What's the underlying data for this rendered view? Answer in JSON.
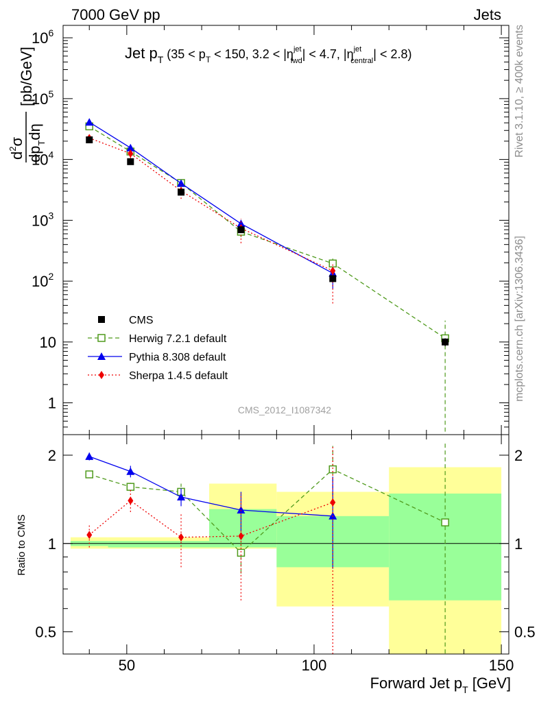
{
  "header": {
    "left": "7000 GeV pp",
    "right": "Jets",
    "side_top": "Rivet 3.1.10, ≥ 400k events",
    "side_bottom": "mcplots.cern.ch [arXiv:1306.3436]",
    "analysis_id": "CMS_2012_I1087342"
  },
  "chart_data": [
    {
      "type": "scatter",
      "title": "Jet p_T (35 < p_T < 150, 3.2 < |η_fwd^jet| < 4.7, |η_central^jet| < 2.8)",
      "title_parts": {
        "main": "Jet p",
        "sub_T": "T",
        "range_a": "(35 < p",
        "range_b": " < 150, 3.2 < |η",
        "sup_jet": "jet",
        "sub_fwd": "fwd",
        "range_c": "| < 4.7, |η",
        "sub_central": "central",
        "range_d": "| < 2.8)"
      },
      "ylabel": "d²σ/dp_T dη [pb/GeV]",
      "ylabel_parts": {
        "num": "d",
        "num_sup": "2",
        "num_sigma": "σ",
        "den": "dp",
        "den_sub": "T",
        "den_eta": "dη",
        "unit": "[pb/GeV]"
      },
      "yscale": "log",
      "ylim": [
        0.3,
        1600000
      ],
      "y_ticks": [
        {
          "value": 1,
          "label": "1"
        },
        {
          "value": 10,
          "label": "10"
        },
        {
          "value": 100,
          "label": "10",
          "exp": "2"
        },
        {
          "value": 1000,
          "label": "10",
          "exp": "3"
        },
        {
          "value": 10000,
          "label": "10",
          "exp": "4"
        },
        {
          "value": 100000,
          "label": "10",
          "exp": "5"
        },
        {
          "value": 1000000,
          "label": "10",
          "exp": "6"
        }
      ],
      "xlim": [
        33,
        152
      ],
      "legend_position": "lower-left",
      "series": [
        {
          "name": "CMS",
          "color": "#000000",
          "marker": "square-filled",
          "line": "none",
          "x": [
            40,
            51,
            64.5,
            80.5,
            105,
            135
          ],
          "y": [
            21000,
            9200,
            2900,
            700,
            110,
            10
          ],
          "err_lo": [
            1500,
            700,
            250,
            60,
            12,
            1.5
          ],
          "err_hi": [
            1500,
            700,
            250,
            60,
            12,
            1.5
          ]
        },
        {
          "name": "Herwig 7.2.1 default",
          "color": "#4f9a1c",
          "marker": "square-open",
          "line": "dashed",
          "x": [
            40,
            51,
            64.5,
            80.5,
            105,
            135
          ],
          "y": [
            35000,
            13500,
            4100,
            650,
            195,
            11.5
          ],
          "err_lo": [
            2000,
            900,
            400,
            120,
            40,
            11.3
          ],
          "err_hi": [
            2000,
            900,
            400,
            120,
            40,
            11
          ]
        },
        {
          "name": "Pythia 8.308 default",
          "color": "#0000ee",
          "marker": "triangle-filled",
          "line": "solid",
          "x": [
            40,
            51,
            64.5,
            80.5,
            105
          ],
          "y": [
            41000,
            15500,
            4050,
            880,
            135
          ],
          "err_lo": [
            2000,
            900,
            350,
            120,
            60
          ],
          "err_hi": [
            2000,
            900,
            350,
            120,
            20
          ]
        },
        {
          "name": "Sherpa 1.4.5 default",
          "color": "#ee0000",
          "marker": "diamond-filled",
          "line": "dotted",
          "x": [
            40,
            51,
            64.5,
            80.5,
            105
          ],
          "y": [
            22500,
            12500,
            3050,
            740,
            148
          ],
          "err_lo": [
            2500,
            2000,
            800,
            320,
            105
          ],
          "err_hi": [
            2500,
            2000,
            800,
            320,
            40
          ]
        }
      ]
    },
    {
      "type": "scatter",
      "title": "",
      "ylabel": "Ratio to CMS",
      "yscale": "log",
      "ylim": [
        0.42,
        2.35
      ],
      "y_ticks": [
        {
          "value": 0.5,
          "label": "0.5"
        },
        {
          "value": 1,
          "label": "1"
        },
        {
          "value": 2,
          "label": "2"
        }
      ],
      "xlabel": "Forward Jet p_T [GeV]",
      "xlabel_parts": {
        "main": "Forward Jet p",
        "sub": "T",
        "unit": " [GeV]"
      },
      "xlim": [
        33,
        152
      ],
      "x_ticks": [
        {
          "value": 50,
          "label": "50"
        },
        {
          "value": 100,
          "label": "100"
        },
        {
          "value": 150,
          "label": "150"
        }
      ],
      "bands": [
        {
          "x0": 35,
          "x1": 45,
          "y_lo": 0.96,
          "y_hi": 1.05,
          "inner_lo": 0.98,
          "inner_hi": 1.02
        },
        {
          "x0": 45,
          "x1": 72,
          "y_lo": 0.96,
          "y_hi": 1.05,
          "inner_lo": 0.97,
          "inner_hi": 1.02
        },
        {
          "x0": 72,
          "x1": 90,
          "y_lo": 0.96,
          "y_hi": 1.6,
          "inner_lo": 0.97,
          "inner_hi": 1.31
        },
        {
          "x0": 90,
          "x1": 120,
          "y_lo": 0.61,
          "y_hi": 1.5,
          "inner_lo": 0.83,
          "inner_hi": 1.24
        },
        {
          "x0": 120,
          "x1": 150,
          "y_lo": 0.42,
          "y_hi": 1.82,
          "inner_lo": 0.64,
          "inner_hi": 1.48
        }
      ],
      "band_colors": {
        "outer": "#ffff99",
        "inner": "#99ff99"
      },
      "series": [
        {
          "name": "Herwig 7.2.1 default",
          "color": "#4f9a1c",
          "marker": "square-open",
          "line": "dashed",
          "x": [
            40,
            51,
            64.5,
            80.5,
            105,
            135
          ],
          "y": [
            1.72,
            1.56,
            1.5,
            0.93,
            1.79,
            1.18
          ],
          "err_lo": [
            0.04,
            0.05,
            0.1,
            0.14,
            0.33,
            0.78
          ],
          "err_hi": [
            0.04,
            0.05,
            0.1,
            0.14,
            0.36,
            1.02
          ]
        },
        {
          "name": "Pythia 8.308 default",
          "color": "#0000ee",
          "marker": "triangle-filled",
          "line": "solid",
          "x": [
            40,
            51,
            64.5,
            80.5,
            105
          ],
          "y": [
            1.98,
            1.76,
            1.44,
            1.3,
            1.24
          ],
          "err_lo": [
            0.06,
            0.08,
            0.1,
            0.2,
            0.42
          ],
          "err_hi": [
            0.06,
            0.08,
            0.1,
            0.2,
            0.45
          ]
        },
        {
          "name": "Sherpa 1.4.5 default",
          "color": "#ee0000",
          "marker": "diamond-filled",
          "line": "dotted",
          "x": [
            40,
            51,
            64.5,
            80.5,
            105
          ],
          "y": [
            1.07,
            1.4,
            1.05,
            1.06,
            1.38
          ],
          "err_lo": [
            0.1,
            0.12,
            0.22,
            0.42,
            0.96
          ],
          "err_hi": [
            0.1,
            0.12,
            0.22,
            0.42,
            0.77
          ]
        }
      ]
    }
  ]
}
